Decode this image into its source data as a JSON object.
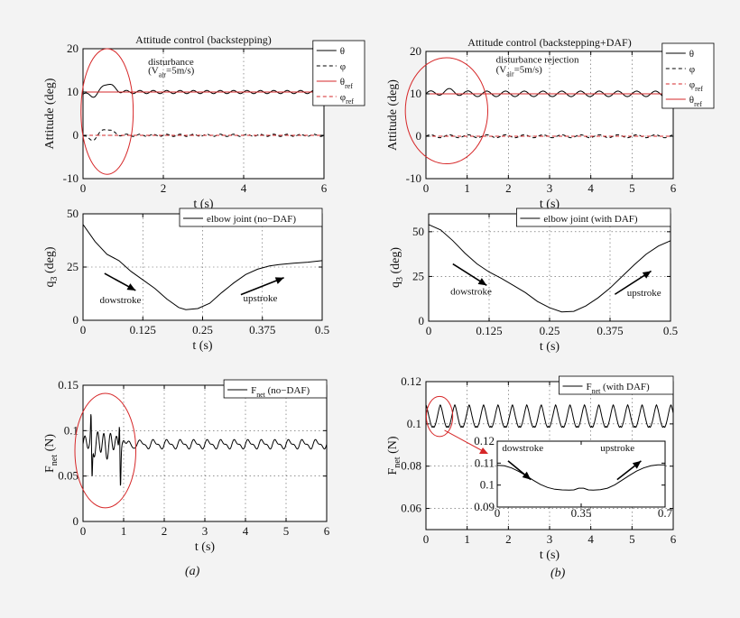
{
  "chart_data": [
    {
      "id": "att-a",
      "type": "line",
      "title": "Attitude control (backstepping)",
      "xlabel": "t (s)",
      "ylabel": "Attitude (deg)",
      "xlim": [
        0,
        6
      ],
      "ylim": [
        -10,
        20
      ],
      "xticks": [
        0,
        2,
        4,
        6
      ],
      "yticks": [
        -10,
        0,
        10,
        20
      ],
      "grid": true,
      "legend": {
        "position": "top-right",
        "entries": [
          {
            "label": "θ",
            "sub": "",
            "color": "#000000",
            "dash": "solid"
          },
          {
            "label": "φ",
            "sub": "",
            "color": "#000000",
            "dash": "dash"
          },
          {
            "label": "θ",
            "sub": "ref",
            "color": "#d62728",
            "dash": "solid"
          },
          {
            "label": "φ",
            "sub": "ref",
            "color": "#d62728",
            "dash": "dash"
          }
        ]
      },
      "annotations": [
        {
          "kind": "text",
          "text": "disturbance",
          "at": [
            1.62,
            16.3
          ]
        },
        {
          "kind": "text",
          "text": "(V",
          "sub": "air",
          "rest": "=5m/s)",
          "at": [
            1.62,
            14.3
          ]
        },
        {
          "kind": "ellipse",
          "center": [
            0.6,
            5.5
          ],
          "radii": [
            0.65,
            14.5
          ],
          "color": "#d62728"
        }
      ],
      "series": [
        {
          "name": "θ",
          "color": "#000000",
          "dash": "solid",
          "gen": "att_theta",
          "params": {
            "base": 10,
            "amp": 0.35,
            "freq": 3.0,
            "dist": [
              [
                0.5,
                3.5,
                0.18
              ],
              [
                0.2,
                1.8,
                0.12
              ],
              [
                0.3,
                -4.0,
                0.18
              ]
            ]
          }
        },
        {
          "name": "φ",
          "color": "#000000",
          "dash": "dash",
          "gen": "att_phi",
          "params": {
            "base": 0,
            "amp": 0.25,
            "freq": 3.0,
            "dist": [
              [
                0.5,
                2.0,
                0.18
              ],
              [
                0.3,
                -1.8,
                0.15
              ]
            ]
          }
        },
        {
          "name": "θref",
          "color": "#d62728",
          "dash": "solid",
          "gen": "const",
          "params": {
            "value": 10
          }
        },
        {
          "name": "φref",
          "color": "#d62728",
          "dash": "dash",
          "gen": "const",
          "params": {
            "value": 0
          }
        }
      ]
    },
    {
      "id": "att-b",
      "type": "line",
      "title": "Attitude control (backstepping+DAF)",
      "xlabel": "t (s)",
      "ylabel": "Attitude (deg)",
      "xlim": [
        0,
        6
      ],
      "ylim": [
        -10,
        20
      ],
      "xticks": [
        0,
        1,
        2,
        3,
        4,
        5,
        6
      ],
      "yticks": [
        -10,
        0,
        10,
        20
      ],
      "grid": true,
      "legend": {
        "position": "top-right",
        "entries": [
          {
            "label": "θ",
            "sub": "",
            "color": "#000000",
            "dash": "solid"
          },
          {
            "label": "φ",
            "sub": "",
            "color": "#000000",
            "dash": "dash"
          },
          {
            "label": "φ",
            "sub": "ref",
            "color": "#d62728",
            "dash": "dash"
          },
          {
            "label": "θ",
            "sub": "ref",
            "color": "#d62728",
            "dash": "solid"
          }
        ]
      },
      "annotations": [
        {
          "kind": "text",
          "text": "disturbance rejection",
          "at": [
            1.7,
            17.3
          ]
        },
        {
          "kind": "text",
          "text": "(V",
          "sub": "air",
          "rest": "=5m/s)",
          "at": [
            1.7,
            15.0
          ]
        },
        {
          "kind": "ellipse",
          "center": [
            0.5,
            6.0
          ],
          "radii": [
            1.0,
            12.5
          ],
          "color": "#d62728"
        }
      ],
      "series": [
        {
          "name": "θ",
          "color": "#000000",
          "dash": "solid",
          "gen": "att_theta",
          "params": {
            "base": 10,
            "amp": 0.65,
            "freq": 2.2,
            "dist": [
              [
                0.55,
                0.6,
                0.2
              ]
            ]
          }
        },
        {
          "name": "φ",
          "color": "#000000",
          "dash": "dash",
          "gen": "att_phi",
          "params": {
            "base": 0,
            "amp": 0.35,
            "freq": 2.2,
            "dist": []
          }
        },
        {
          "name": "φref",
          "color": "#d62728",
          "dash": "dash",
          "gen": "const",
          "params": {
            "value": 0
          }
        },
        {
          "name": "θref",
          "color": "#d62728",
          "dash": "solid",
          "gen": "const",
          "params": {
            "value": 10
          }
        }
      ]
    },
    {
      "id": "q3-a",
      "type": "line",
      "title": "",
      "xlabel": "t (s)",
      "ylabel": "q",
      "ylabel_sub": "3",
      "ylabel_rest": " (deg)",
      "xlim": [
        0,
        0.5
      ],
      "ylim": [
        0,
        50
      ],
      "xticks": [
        0,
        0.125,
        0.25,
        0.375,
        0.5
      ],
      "xticklabels": [
        "0",
        "0.125",
        "0.25",
        "0.375",
        "0.5"
      ],
      "yticks": [
        0,
        25,
        50
      ],
      "grid": true,
      "legend": {
        "position": "top-right",
        "entries": [
          {
            "label": "elbow joint (no−DAF)",
            "sub": "",
            "color": "#000000",
            "dash": "solid"
          }
        ]
      },
      "annotations": [
        {
          "kind": "arrow",
          "from": [
            0.045,
            22
          ],
          "to": [
            0.11,
            14
          ]
        },
        {
          "kind": "text",
          "text": "dowstroke",
          "at": [
            0.035,
            8
          ]
        },
        {
          "kind": "arrow",
          "from": [
            0.33,
            12
          ],
          "to": [
            0.42,
            20
          ]
        },
        {
          "kind": "text",
          "text": "upstroke",
          "at": [
            0.335,
            9
          ]
        }
      ],
      "series": [
        {
          "name": "elbow joint (no−DAF)",
          "color": "#000000",
          "dash": "solid",
          "gen": "points",
          "points": [
            [
              0,
              45
            ],
            [
              0.025,
              37
            ],
            [
              0.05,
              31
            ],
            [
              0.075,
              28
            ],
            [
              0.1,
              23
            ],
            [
              0.125,
              19
            ],
            [
              0.15,
              15
            ],
            [
              0.175,
              10
            ],
            [
              0.2,
              6
            ],
            [
              0.215,
              5
            ],
            [
              0.24,
              5.5
            ],
            [
              0.265,
              8
            ],
            [
              0.29,
              13
            ],
            [
              0.315,
              17.5
            ],
            [
              0.34,
              21.5
            ],
            [
              0.365,
              24
            ],
            [
              0.39,
              25.5
            ],
            [
              0.41,
              26.2
            ],
            [
              0.44,
              26.8
            ],
            [
              0.47,
              27.3
            ],
            [
              0.5,
              28
            ]
          ]
        }
      ]
    },
    {
      "id": "q3-b",
      "type": "line",
      "title": "",
      "xlabel": "t (s)",
      "ylabel": "q",
      "ylabel_sub": "3",
      "ylabel_rest": " (deg)",
      "xlim": [
        0,
        0.5
      ],
      "ylim": [
        0,
        60
      ],
      "xticks": [
        0,
        0.125,
        0.25,
        0.375,
        0.5
      ],
      "xticklabels": [
        "0",
        "0.125",
        "0.25",
        "0.375",
        "0.5"
      ],
      "yticks": [
        0,
        25,
        50
      ],
      "grid": true,
      "legend": {
        "position": "top-right",
        "entries": [
          {
            "label": "elbow joint (with DAF)",
            "sub": "",
            "color": "#000000",
            "dash": "solid"
          }
        ]
      },
      "annotations": [
        {
          "kind": "arrow",
          "from": [
            0.05,
            32
          ],
          "to": [
            0.12,
            20
          ]
        },
        {
          "kind": "text",
          "text": "dowstroke",
          "at": [
            0.045,
            15
          ]
        },
        {
          "kind": "arrow",
          "from": [
            0.385,
            15
          ],
          "to": [
            0.46,
            28
          ]
        },
        {
          "kind": "text",
          "text": "upstroke",
          "at": [
            0.41,
            14
          ]
        }
      ],
      "series": [
        {
          "name": "elbow joint (with DAF)",
          "color": "#000000",
          "dash": "solid",
          "gen": "points",
          "points": [
            [
              0,
              54
            ],
            [
              0.025,
              51
            ],
            [
              0.05,
              45
            ],
            [
              0.075,
              38
            ],
            [
              0.1,
              32
            ],
            [
              0.125,
              27.5
            ],
            [
              0.15,
              24
            ],
            [
              0.175,
              20
            ],
            [
              0.2,
              16
            ],
            [
              0.225,
              11
            ],
            [
              0.25,
              7.5
            ],
            [
              0.275,
              5.2
            ],
            [
              0.3,
              5.5
            ],
            [
              0.325,
              8.5
            ],
            [
              0.35,
              13
            ],
            [
              0.375,
              18.5
            ],
            [
              0.4,
              25
            ],
            [
              0.425,
              31.5
            ],
            [
              0.45,
              37.5
            ],
            [
              0.475,
              42
            ],
            [
              0.5,
              45
            ]
          ]
        }
      ]
    },
    {
      "id": "fnet-a",
      "type": "line",
      "title": "",
      "xlabel": "t (s)",
      "ylabel": "F",
      "ylabel_sub": "net",
      "ylabel_rest": " (N)",
      "xlim": [
        0,
        6
      ],
      "ylim": [
        0,
        0.15
      ],
      "xticks": [
        0,
        1,
        2,
        3,
        4,
        5,
        6
      ],
      "yticks": [
        0,
        0.05,
        0.1,
        0.15
      ],
      "grid": true,
      "legend": {
        "position": "top-right",
        "entries": [
          {
            "label": "F",
            "sub": "net",
            "rest": " (no−DAF)",
            "color": "#000000",
            "dash": "solid"
          }
        ]
      },
      "annotations": [
        {
          "kind": "ellipse",
          "center": [
            0.55,
            0.078
          ],
          "radii": [
            0.75,
            0.063
          ],
          "color": "#d62728"
        }
      ],
      "series": [
        {
          "name": "Fnet (no−DAF)",
          "color": "#000000",
          "dash": "solid",
          "gen": "fnet",
          "params": {
            "base": 0.085,
            "amp": 0.004,
            "freq": 3.0,
            "spikes": [
              [
                0.2,
                0.12
              ],
              [
                0.22,
                0.04
              ],
              [
                0.9,
                0.122
              ],
              [
                0.92,
                0.04
              ]
            ]
          }
        }
      ]
    },
    {
      "id": "fnet-b",
      "type": "line",
      "title": "",
      "xlabel": "t (s)",
      "ylabel": "F",
      "ylabel_sub": "net",
      "ylabel_rest": " (N)",
      "xlim": [
        0,
        6
      ],
      "ylim": [
        0.05,
        0.12
      ],
      "xticks": [
        0,
        1,
        2,
        3,
        4,
        5,
        6
      ],
      "yticks": [
        0.06,
        0.08,
        0.1,
        0.12
      ],
      "grid": true,
      "legend": {
        "position": "top-right",
        "entries": [
          {
            "label": "F",
            "sub": "net",
            "rest": " (with DAF)",
            "color": "#000000",
            "dash": "solid"
          }
        ]
      },
      "annotations": [
        {
          "kind": "ellipse",
          "center": [
            0.33,
            0.1035
          ],
          "radii": [
            0.32,
            0.0095
          ],
          "color": "#d62728"
        }
      ],
      "series": [
        {
          "name": "Fnet (with DAF)",
          "color": "#000000",
          "dash": "solid",
          "gen": "fnet_daf",
          "params": {
            "hi": 0.109,
            "lo": 0.098,
            "freq": 2.86
          }
        }
      ],
      "inset": {
        "xlim": [
          0,
          0.7
        ],
        "ylim": [
          0.09,
          0.12
        ],
        "xticks": [
          0,
          0.35,
          0.7
        ],
        "xticklabels": [
          "0",
          "0.35",
          "0.7"
        ],
        "yticks": [
          0.09,
          0.1,
          0.11,
          0.12
        ],
        "annotations": [
          {
            "kind": "text",
            "text": "dowstroke",
            "at": [
              0.02,
              0.1155
            ]
          },
          {
            "kind": "arrow",
            "from": [
              0.045,
              0.111
            ],
            "to": [
              0.14,
              0.1025
            ]
          },
          {
            "kind": "text",
            "text": "upstroke",
            "at": [
              0.43,
              0.1155
            ]
          },
          {
            "kind": "arrow",
            "from": [
              0.5,
              0.1025
            ],
            "to": [
              0.6,
              0.111
            ]
          }
        ],
        "series": [
          {
            "name": "Fnet detail",
            "color": "#000000",
            "dash": "solid",
            "gen": "points",
            "points": [
              [
                0,
                0.109
              ],
              [
                0.03,
                0.1088
              ],
              [
                0.06,
                0.1078
              ],
              [
                0.09,
                0.1062
              ],
              [
                0.12,
                0.1043
              ],
              [
                0.15,
                0.1022
              ],
              [
                0.18,
                0.1003
              ],
              [
                0.21,
                0.0989
              ],
              [
                0.24,
                0.0981
              ],
              [
                0.27,
                0.0978
              ],
              [
                0.3,
                0.0977
              ],
              [
                0.32,
                0.0978
              ],
              [
                0.34,
                0.0986
              ],
              [
                0.36,
                0.0986
              ],
              [
                0.38,
                0.0978
              ],
              [
                0.4,
                0.0977
              ],
              [
                0.43,
                0.0979
              ],
              [
                0.46,
                0.0986
              ],
              [
                0.49,
                0.1001
              ],
              [
                0.52,
                0.1022
              ],
              [
                0.55,
                0.1043
              ],
              [
                0.58,
                0.1063
              ],
              [
                0.61,
                0.1078
              ],
              [
                0.64,
                0.1088
              ],
              [
                0.67,
                0.1092
              ],
              [
                0.7,
                0.1092
              ]
            ]
          }
        ]
      }
    }
  ],
  "captions": {
    "a": "(a)",
    "b": "(b)"
  }
}
